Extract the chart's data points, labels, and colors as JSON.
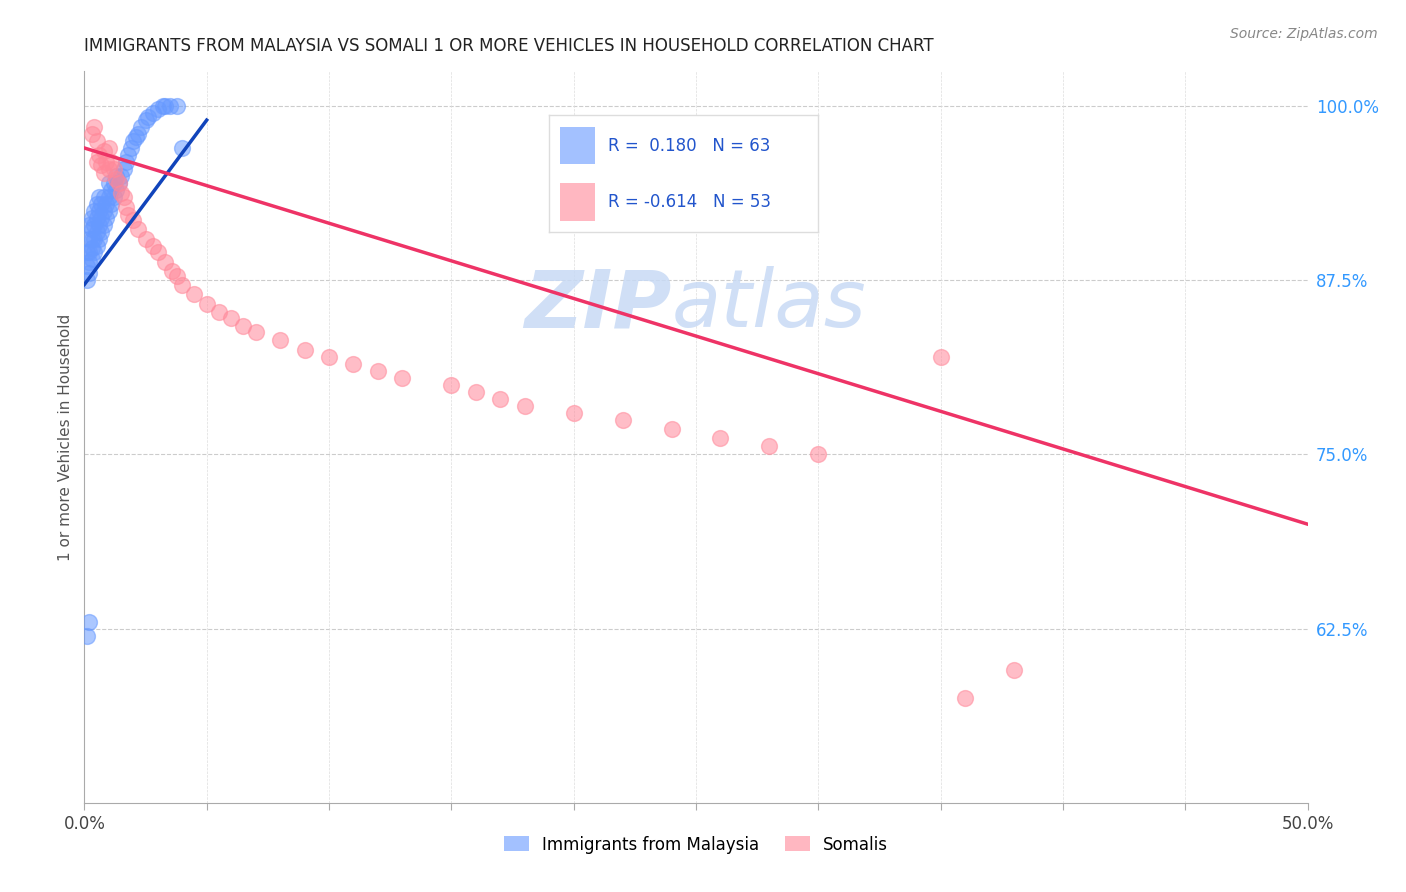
{
  "title": "IMMIGRANTS FROM MALAYSIA VS SOMALI 1 OR MORE VEHICLES IN HOUSEHOLD CORRELATION CHART",
  "source": "Source: ZipAtlas.com",
  "ylabel": "1 or more Vehicles in Household",
  "legend_malaysia": "Immigrants from Malaysia",
  "legend_somali": "Somalis",
  "R_malaysia": "0.180",
  "N_malaysia": "63",
  "R_somali": "-0.614",
  "N_somali": "53",
  "malaysia_color": "#6699ff",
  "somali_color": "#ff8899",
  "malaysia_line_color": "#1144bb",
  "somali_line_color": "#ee3366",
  "x_min": 0.0,
  "x_max": 0.5,
  "y_min": 0.5,
  "y_max": 1.025,
  "y_ticks": [
    0.625,
    0.75,
    0.875,
    1.0
  ],
  "y_tick_labels": [
    "62.5%",
    "75.0%",
    "87.5%",
    "100.0%"
  ],
  "malaysia_scatter_x": [
    0.001,
    0.001,
    0.001,
    0.002,
    0.002,
    0.002,
    0.002,
    0.002,
    0.003,
    0.003,
    0.003,
    0.003,
    0.003,
    0.004,
    0.004,
    0.004,
    0.004,
    0.005,
    0.005,
    0.005,
    0.005,
    0.006,
    0.006,
    0.006,
    0.006,
    0.007,
    0.007,
    0.007,
    0.008,
    0.008,
    0.008,
    0.009,
    0.009,
    0.01,
    0.01,
    0.01,
    0.011,
    0.011,
    0.012,
    0.012,
    0.013,
    0.013,
    0.014,
    0.015,
    0.016,
    0.017,
    0.018,
    0.019,
    0.02,
    0.021,
    0.022,
    0.023,
    0.025,
    0.026,
    0.028,
    0.03,
    0.032,
    0.033,
    0.035,
    0.038,
    0.001,
    0.002,
    0.04
  ],
  "malaysia_scatter_y": [
    0.875,
    0.885,
    0.895,
    0.88,
    0.888,
    0.895,
    0.905,
    0.915,
    0.89,
    0.898,
    0.905,
    0.912,
    0.92,
    0.895,
    0.905,
    0.915,
    0.925,
    0.9,
    0.91,
    0.92,
    0.93,
    0.905,
    0.915,
    0.925,
    0.935,
    0.91,
    0.92,
    0.93,
    0.915,
    0.925,
    0.935,
    0.92,
    0.93,
    0.925,
    0.935,
    0.945,
    0.93,
    0.94,
    0.935,
    0.945,
    0.94,
    0.95,
    0.945,
    0.95,
    0.955,
    0.96,
    0.965,
    0.97,
    0.975,
    0.978,
    0.98,
    0.985,
    0.99,
    0.992,
    0.995,
    0.998,
    1.0,
    1.0,
    1.0,
    1.0,
    0.62,
    0.63,
    0.97
  ],
  "somali_scatter_x": [
    0.003,
    0.004,
    0.005,
    0.005,
    0.006,
    0.007,
    0.008,
    0.008,
    0.009,
    0.01,
    0.01,
    0.011,
    0.012,
    0.013,
    0.014,
    0.015,
    0.016,
    0.017,
    0.018,
    0.02,
    0.022,
    0.025,
    0.028,
    0.03,
    0.033,
    0.036,
    0.038,
    0.04,
    0.045,
    0.05,
    0.055,
    0.06,
    0.065,
    0.07,
    0.08,
    0.09,
    0.1,
    0.11,
    0.12,
    0.13,
    0.15,
    0.16,
    0.17,
    0.18,
    0.2,
    0.22,
    0.24,
    0.26,
    0.28,
    0.3,
    0.35,
    0.36,
    0.38
  ],
  "somali_scatter_y": [
    0.98,
    0.985,
    0.96,
    0.975,
    0.965,
    0.958,
    0.952,
    0.968,
    0.96,
    0.955,
    0.97,
    0.96,
    0.955,
    0.948,
    0.945,
    0.938,
    0.935,
    0.928,
    0.922,
    0.918,
    0.912,
    0.905,
    0.9,
    0.895,
    0.888,
    0.882,
    0.878,
    0.872,
    0.865,
    0.858,
    0.852,
    0.848,
    0.842,
    0.838,
    0.832,
    0.825,
    0.82,
    0.815,
    0.81,
    0.805,
    0.8,
    0.795,
    0.79,
    0.785,
    0.78,
    0.775,
    0.768,
    0.762,
    0.756,
    0.75,
    0.82,
    0.575,
    0.595
  ],
  "malaysia_line_x": [
    0.0,
    0.05
  ],
  "malaysia_line_y": [
    0.872,
    0.99
  ],
  "somali_line_x": [
    0.0,
    0.5
  ],
  "somali_line_y": [
    0.97,
    0.7
  ]
}
